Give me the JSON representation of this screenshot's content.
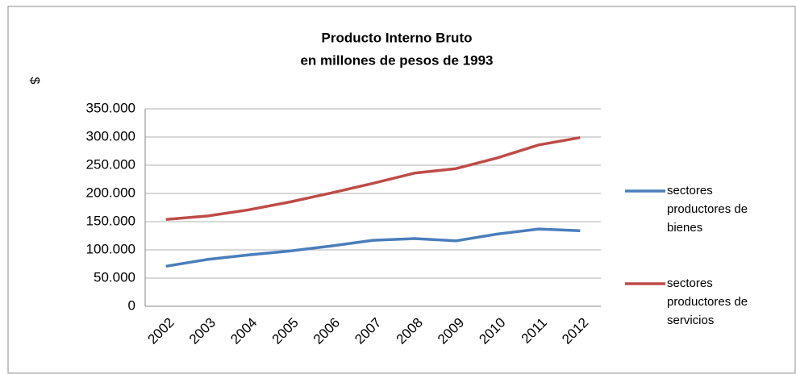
{
  "chart_data": {
    "type": "line",
    "title": "Producto Interno Bruto",
    "subtitle": "en millones de pesos de 1993",
    "y_label": "$",
    "categories": [
      "2002",
      "2003",
      "2004",
      "2005",
      "2006",
      "2007",
      "2008",
      "2009",
      "2010",
      "2011",
      "2012"
    ],
    "series": [
      {
        "name": "sectores productores de bienes",
        "color": "#4a7ebb",
        "values": [
          71000,
          83000,
          91000,
          98000,
          107000,
          117000,
          120000,
          116000,
          128000,
          137000,
          134000
        ]
      },
      {
        "name": "sectores productores de servicios",
        "color": "#be4b48",
        "values": [
          154000,
          160000,
          171000,
          185000,
          201000,
          218000,
          236000,
          244000,
          263000,
          286000,
          299000
        ]
      }
    ],
    "ylim": [
      0,
      350000
    ],
    "yticks": [
      0,
      {
        "value": 50000,
        "label": "50.000"
      },
      {
        "value": 100000,
        "label": "100.000"
      },
      {
        "value": 150000,
        "label": "150.000"
      },
      {
        "value": 200000,
        "label": "200.000"
      },
      {
        "value": 250000,
        "label": "250.000"
      },
      {
        "value": 300000,
        "label": "300.000"
      },
      {
        "value": 350000,
        "label": "350.000"
      }
    ],
    "grid": true,
    "legend": "right"
  }
}
